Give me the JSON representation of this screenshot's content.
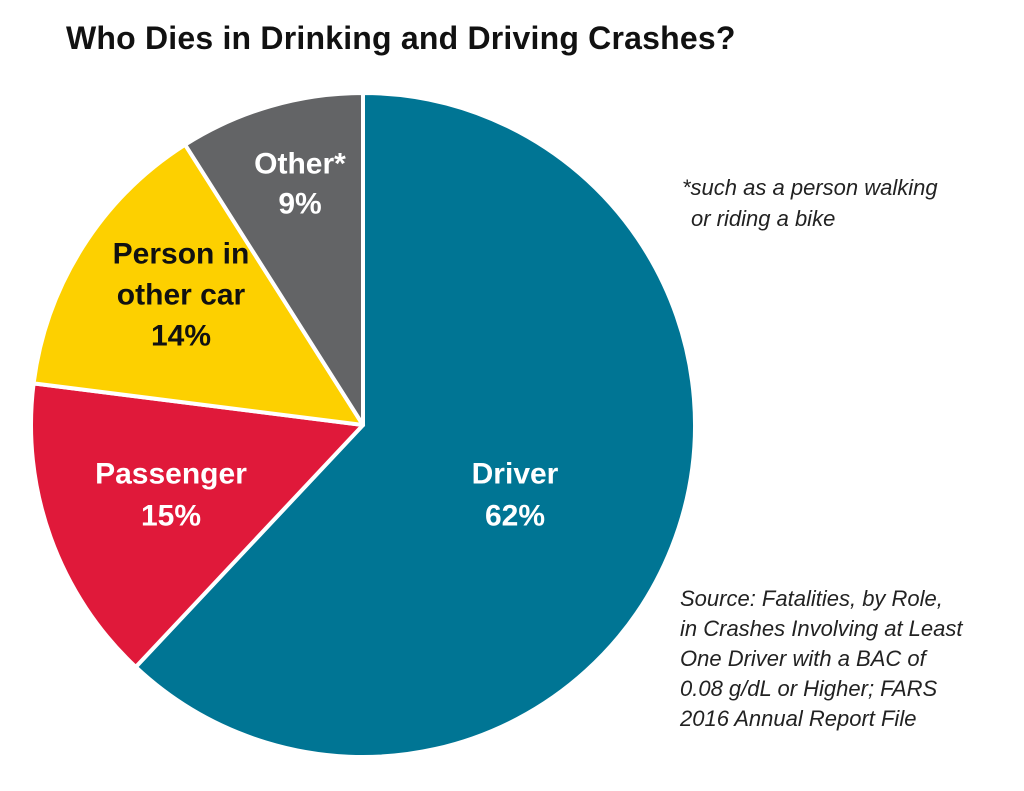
{
  "chart_data": {
    "type": "pie",
    "title": "Who Dies in Drinking and Driving Crashes?",
    "start_angle_deg": 0,
    "direction": "clockwise",
    "slices": [
      {
        "label_lines": [
          "Driver"
        ],
        "value": 62,
        "value_label": "62%",
        "color": "#007594",
        "text_color": "#ffffff"
      },
      {
        "label_lines": [
          "Passenger"
        ],
        "value": 15,
        "value_label": "15%",
        "color": "#e0193a",
        "text_color": "#ffffff"
      },
      {
        "label_lines": [
          "Person in",
          "other car"
        ],
        "value": 14,
        "value_label": "14%",
        "color": "#fdd000",
        "text_color": "#111111"
      },
      {
        "label_lines": [
          "Other*"
        ],
        "value": 9,
        "value_label": "9%",
        "color": "#636466",
        "text_color": "#ffffff"
      }
    ]
  },
  "annotations": {
    "footnote_lines": [
      "*such as a person walking",
      "or riding a bike"
    ],
    "source_lines": [
      "Source: Fatalities, by Role,",
      "in Crashes Involving at Least",
      "One Driver with a BAC of",
      "0.08 g/dL or Higher; FARS",
      "2016 Annual Report File"
    ]
  }
}
